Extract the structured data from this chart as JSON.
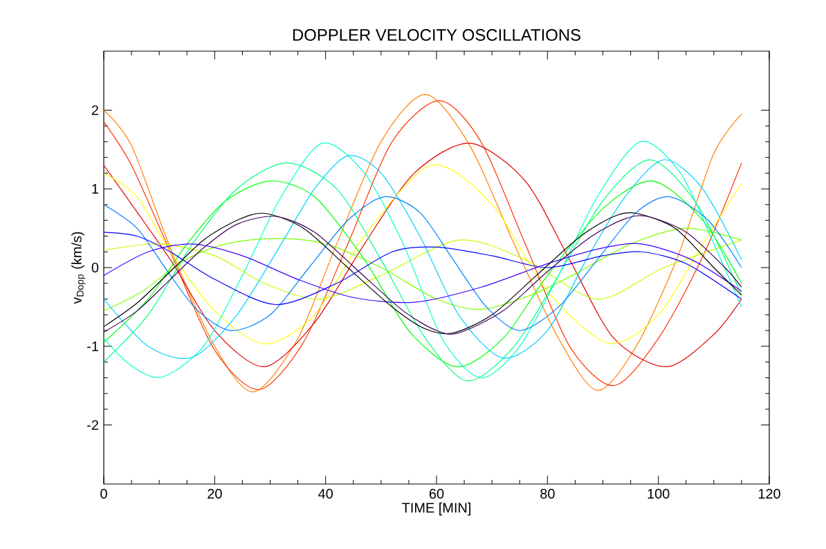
{
  "chart_data": {
    "type": "line",
    "title": "DOPPLER VELOCITY OSCILLATIONS",
    "xlabel": "TIME [MIN]",
    "ylabel": "v$_{Dopp}$ (km/s)",
    "xlim": [
      0,
      120
    ],
    "ylim": [
      -2.75,
      2.75
    ],
    "xticks": [
      0,
      20,
      40,
      60,
      80,
      100,
      120
    ],
    "yticks": [
      -2,
      -1,
      0,
      1,
      2
    ],
    "marker": "none",
    "line_style": "solid",
    "series": [
      {
        "color": "#ff8000",
        "x": [
          0,
          5,
          12,
          20,
          27,
          35,
          42,
          50,
          58,
          66,
          74,
          82,
          89,
          96,
          103.5,
          110,
          115
        ],
        "values": [
          2.0,
          1.55,
          0.25,
          -1.0,
          -1.58,
          -0.9,
          0.3,
          1.6,
          2.2,
          1.55,
          0.3,
          -0.9,
          -1.56,
          -1.0,
          0.14,
          1.45,
          1.95
        ]
      },
      {
        "color": "#ff3000",
        "x": [
          0,
          5,
          12,
          20,
          28,
          36,
          44,
          52,
          60.5,
          68,
          76,
          84,
          92,
          100,
          108,
          115
        ],
        "values": [
          1.85,
          1.3,
          0.2,
          -1.05,
          -1.55,
          -0.95,
          0.3,
          1.6,
          2.12,
          1.6,
          0.3,
          -1.0,
          -1.5,
          -0.9,
          0.14,
          1.33
        ]
      },
      {
        "color": "#e00000",
        "x": [
          0,
          12,
          20,
          29,
          38,
          47,
          56,
          66,
          76,
          84,
          92,
          101.5,
          110,
          115
        ],
        "values": [
          1.3,
          0.1,
          -0.8,
          -1.26,
          -0.7,
          0.3,
          1.2,
          1.58,
          1.1,
          0.1,
          -0.9,
          -1.26,
          -0.85,
          -0.4
        ]
      },
      {
        "color": "#ffff00",
        "x": [
          0,
          6,
          12,
          20,
          29,
          38,
          47,
          59,
          70,
          80,
          91,
          100,
          108,
          115
        ],
        "values": [
          1.2,
          0.9,
          0.2,
          -0.55,
          -0.97,
          -0.6,
          0.4,
          1.3,
          0.8,
          -0.3,
          -0.96,
          -0.6,
          0.3,
          1.07
        ]
      },
      {
        "color": "#c0ff00",
        "x": [
          0,
          10,
          20,
          29,
          39,
          50,
          64,
          76,
          89,
          101,
          115
        ],
        "values": [
          0.22,
          0.3,
          0.15,
          -0.2,
          -0.4,
          -0.1,
          0.35,
          0.1,
          -0.4,
          0.0,
          0.35
        ]
      },
      {
        "color": "#80ff00",
        "x": [
          0,
          7,
          14.5,
          22,
          31,
          40,
          50,
          60,
          68,
          77,
          85,
          95,
          105,
          115
        ],
        "values": [
          -0.55,
          -0.3,
          0.09,
          0.3,
          0.37,
          0.3,
          0.0,
          -0.4,
          -0.53,
          -0.35,
          -0.08,
          0.3,
          0.5,
          0.35
        ]
      },
      {
        "color": "#00ff00",
        "x": [
          0,
          8,
          15,
          22,
          30,
          38,
          47,
          55,
          63.6,
          72,
          80,
          90,
          99,
          108,
          115
        ],
        "values": [
          -0.95,
          -0.4,
          0.3,
          0.85,
          1.1,
          0.9,
          0.1,
          -0.8,
          -1.26,
          -0.9,
          -0.1,
          0.75,
          1.1,
          0.6,
          -0.2
        ]
      },
      {
        "color": "#00ff80",
        "x": [
          0,
          8,
          16,
          24,
          33,
          42,
          50,
          58,
          65.6,
          74,
          82,
          90,
          98.5,
          107,
          115
        ],
        "values": [
          -1.2,
          -0.6,
          0.3,
          1.0,
          1.33,
          1.0,
          0.1,
          -0.9,
          -1.44,
          -1.0,
          -0.1,
          0.85,
          1.37,
          0.8,
          -0.35
        ]
      },
      {
        "color": "#00ffd0",
        "x": [
          0,
          5,
          10.5,
          18,
          25,
          32,
          39.4,
          47,
          54,
          61,
          68,
          75,
          82,
          89,
          96.8,
          104,
          110,
          115
        ],
        "values": [
          -0.9,
          -1.25,
          -1.39,
          -1.0,
          -0.1,
          0.9,
          1.58,
          1.2,
          0.3,
          -0.9,
          -1.4,
          -1.0,
          -0.1,
          0.9,
          1.6,
          1.2,
          0.3,
          -0.5
        ]
      },
      {
        "color": "#00d0ff",
        "x": [
          0,
          8,
          16,
          24,
          32,
          38,
          44,
          50,
          57,
          64,
          72,
          80,
          87,
          94,
          101,
          108,
          115
        ],
        "values": [
          -0.4,
          -1.0,
          -1.14,
          -0.6,
          0.3,
          1.0,
          1.42,
          1.2,
          0.4,
          -0.6,
          -1.15,
          -0.8,
          0.1,
          0.9,
          1.37,
          1.0,
          0.1
        ]
      },
      {
        "color": "#0080ff",
        "x": [
          0,
          6,
          12,
          17,
          23,
          30,
          37,
          44,
          50.6,
          57,
          63,
          69,
          75,
          82,
          89,
          96,
          102,
          109,
          115
        ],
        "values": [
          0.8,
          0.5,
          -0.1,
          -0.55,
          -0.8,
          -0.6,
          0.0,
          0.6,
          0.9,
          0.7,
          0.1,
          -0.5,
          -0.8,
          -0.5,
          0.1,
          0.7,
          0.9,
          0.6,
          0.0
        ]
      },
      {
        "color": "#0000ff",
        "x": [
          0,
          6,
          12,
          20,
          31,
          42,
          52,
          60,
          70,
          80,
          90,
          97,
          105,
          115
        ],
        "values": [
          0.45,
          0.4,
          0.2,
          -0.15,
          -0.47,
          -0.2,
          0.2,
          0.26,
          0.15,
          0.0,
          0.15,
          0.2,
          0.05,
          -0.4
        ]
      },
      {
        "color": "#4000ff",
        "x": [
          0,
          8,
          16,
          25,
          35,
          45,
          56,
          68,
          80,
          90,
          97,
          106,
          115
        ],
        "values": [
          -0.1,
          0.2,
          0.3,
          0.15,
          -0.15,
          -0.38,
          -0.44,
          -0.25,
          0.05,
          0.25,
          0.3,
          0.1,
          -0.3
        ]
      },
      {
        "color": "#000000",
        "x": [
          0,
          6,
          12,
          18,
          24,
          29,
          36,
          44,
          52,
          58,
          63,
          70,
          78,
          86,
          92,
          96,
          103,
          110,
          115
        ],
        "values": [
          -0.75,
          -0.45,
          -0.05,
          0.35,
          0.6,
          0.69,
          0.5,
          0.0,
          -0.5,
          -0.78,
          -0.83,
          -0.6,
          -0.1,
          0.4,
          0.65,
          0.69,
          0.5,
          0.0,
          -0.35
        ]
      },
      {
        "color": "#400060",
        "x": [
          0,
          6,
          12,
          18,
          24,
          31,
          38,
          46,
          54,
          60,
          64,
          72,
          80,
          88,
          94,
          98,
          105,
          112,
          115
        ],
        "values": [
          -0.82,
          -0.55,
          -0.15,
          0.25,
          0.55,
          0.65,
          0.45,
          -0.05,
          -0.55,
          -0.8,
          -0.83,
          -0.55,
          -0.05,
          0.4,
          0.62,
          0.65,
          0.45,
          0.0,
          -0.25
        ]
      }
    ]
  }
}
